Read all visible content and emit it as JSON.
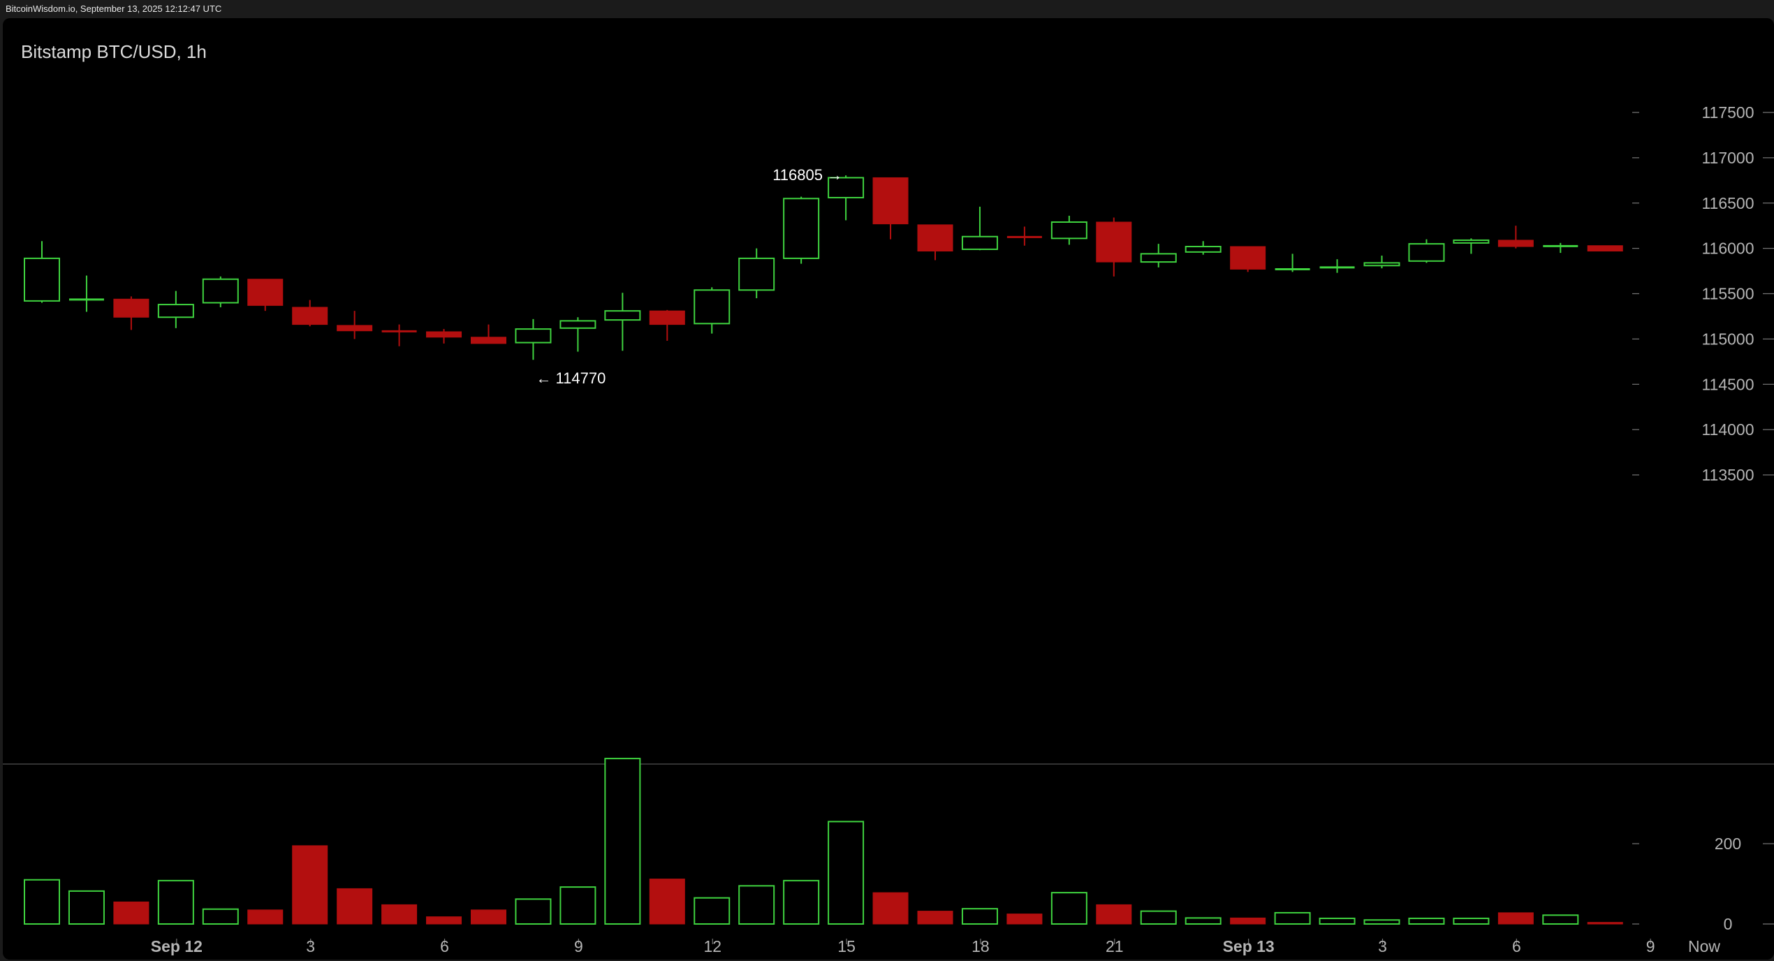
{
  "header": {
    "source_line": "BitcoinWisdom.io, September 13, 2025 12:12:47 UTC",
    "chart_title": "Bitstamp BTC/USD, 1h"
  },
  "colors": {
    "up": "#3fd33f",
    "down": "#b30f0f",
    "background": "#000000",
    "text": "#b5b5b5"
  },
  "chart_data": {
    "type": "candlestick",
    "title": "Bitstamp BTC/USD, 1h",
    "price_axis": {
      "ticks": [
        113500,
        114000,
        114500,
        115000,
        115500,
        116000,
        116500,
        117000,
        117500
      ],
      "range": [
        113000,
        117800
      ]
    },
    "volume_axis": {
      "ticks": [
        0,
        200
      ],
      "range": [
        0,
        400
      ]
    },
    "x_tick_labels": [
      {
        "index": 3,
        "label": "Sep 12",
        "bold": true
      },
      {
        "index": 6,
        "label": "3"
      },
      {
        "index": 9,
        "label": "6"
      },
      {
        "index": 12,
        "label": "9"
      },
      {
        "index": 15,
        "label": "12"
      },
      {
        "index": 18,
        "label": "15"
      },
      {
        "index": 21,
        "label": "18"
      },
      {
        "index": 24,
        "label": "21"
      },
      {
        "index": 27,
        "label": "Sep 13",
        "bold": true
      },
      {
        "index": 30,
        "label": "3"
      },
      {
        "index": 33,
        "label": "6"
      },
      {
        "index": 36,
        "label": "9"
      }
    ],
    "now_label": "Now",
    "annotations": [
      {
        "text": "116805 →",
        "index": 18,
        "price": 116805,
        "side": "left"
      },
      {
        "text": "← 114770",
        "index": 11,
        "price": 114770,
        "side": "right"
      }
    ],
    "candles": [
      {
        "o": 115420,
        "h": 116080,
        "l": 115400,
        "c": 115890,
        "v": 110
      },
      {
        "o": 115430,
        "h": 115700,
        "l": 115300,
        "c": 115440,
        "v": 82
      },
      {
        "o": 115440,
        "h": 115470,
        "l": 115100,
        "c": 115240,
        "v": 55
      },
      {
        "o": 115240,
        "h": 115530,
        "l": 115120,
        "c": 115380,
        "v": 108
      },
      {
        "o": 115400,
        "h": 115690,
        "l": 115350,
        "c": 115660,
        "v": 37
      },
      {
        "o": 115660,
        "h": 115660,
        "l": 115310,
        "c": 115370,
        "v": 35
      },
      {
        "o": 115350,
        "h": 115430,
        "l": 115140,
        "c": 115160,
        "v": 195
      },
      {
        "o": 115150,
        "h": 115310,
        "l": 115000,
        "c": 115090,
        "v": 88
      },
      {
        "o": 115090,
        "h": 115160,
        "l": 114920,
        "c": 115080,
        "v": 48
      },
      {
        "o": 115080,
        "h": 115110,
        "l": 114950,
        "c": 115020,
        "v": 18
      },
      {
        "o": 115020,
        "h": 115160,
        "l": 114960,
        "c": 114950,
        "v": 35
      },
      {
        "o": 114960,
        "h": 115220,
        "l": 114770,
        "c": 115110,
        "v": 62
      },
      {
        "o": 115120,
        "h": 115240,
        "l": 114860,
        "c": 115200,
        "v": 92
      },
      {
        "o": 115210,
        "h": 115510,
        "l": 114870,
        "c": 115310,
        "v": 412
      },
      {
        "o": 115310,
        "h": 115320,
        "l": 114980,
        "c": 115160,
        "v": 112
      },
      {
        "o": 115170,
        "h": 115570,
        "l": 115060,
        "c": 115540,
        "v": 65
      },
      {
        "o": 115540,
        "h": 116000,
        "l": 115450,
        "c": 115890,
        "v": 95
      },
      {
        "o": 115890,
        "h": 116570,
        "l": 115830,
        "c": 116550,
        "v": 108
      },
      {
        "o": 116560,
        "h": 116805,
        "l": 116310,
        "c": 116780,
        "v": 255
      },
      {
        "o": 116780,
        "h": 116780,
        "l": 116100,
        "c": 116270,
        "v": 78
      },
      {
        "o": 116260,
        "h": 116260,
        "l": 115870,
        "c": 115970,
        "v": 32
      },
      {
        "o": 115990,
        "h": 116460,
        "l": 115980,
        "c": 116130,
        "v": 38
      },
      {
        "o": 116130,
        "h": 116240,
        "l": 116030,
        "c": 116120,
        "v": 25
      },
      {
        "o": 116110,
        "h": 116360,
        "l": 116040,
        "c": 116290,
        "v": 78
      },
      {
        "o": 116290,
        "h": 116340,
        "l": 115690,
        "c": 115850,
        "v": 48
      },
      {
        "o": 115850,
        "h": 116050,
        "l": 115790,
        "c": 115940,
        "v": 32
      },
      {
        "o": 115960,
        "h": 116080,
        "l": 115930,
        "c": 116020,
        "v": 15
      },
      {
        "o": 116020,
        "h": 116020,
        "l": 115740,
        "c": 115770,
        "v": 15
      },
      {
        "o": 115770,
        "h": 115940,
        "l": 115740,
        "c": 115770,
        "v": 28
      },
      {
        "o": 115780,
        "h": 115880,
        "l": 115730,
        "c": 115800,
        "v": 14
      },
      {
        "o": 115810,
        "h": 115920,
        "l": 115780,
        "c": 115840,
        "v": 10
      },
      {
        "o": 115860,
        "h": 116100,
        "l": 115840,
        "c": 116050,
        "v": 14
      },
      {
        "o": 116060,
        "h": 116110,
        "l": 115940,
        "c": 116090,
        "v": 14
      },
      {
        "o": 116090,
        "h": 116250,
        "l": 116000,
        "c": 116020,
        "v": 28
      },
      {
        "o": 116020,
        "h": 116060,
        "l": 115950,
        "c": 116030,
        "v": 22
      },
      {
        "o": 116030,
        "h": 116030,
        "l": 115970,
        "c": 115970,
        "v": 4
      }
    ]
  }
}
